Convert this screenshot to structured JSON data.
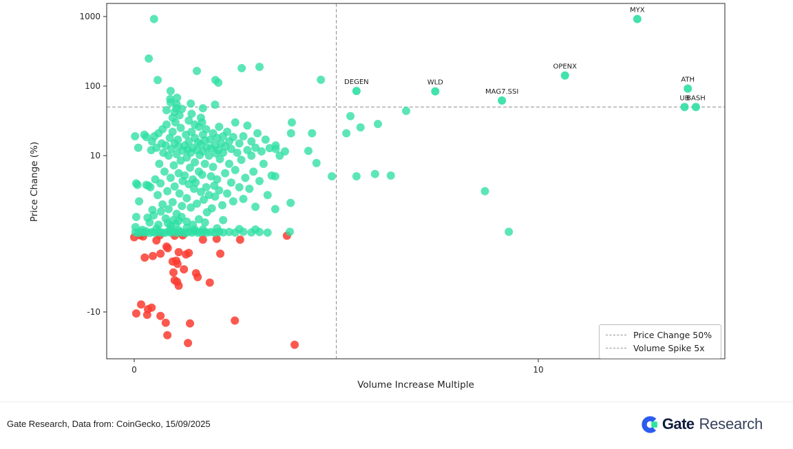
{
  "chart_data": {
    "type": "scatter",
    "title": "",
    "xlabel": "Volume Increase Multiple",
    "ylabel": "Price Change (%)",
    "x_scale": "linear",
    "y_scale": "symlog",
    "y_linthresh": 10,
    "xlim": [
      -0.68,
      14.6
    ],
    "ylim": [
      -45,
      2000
    ],
    "x_ticks": [
      0,
      10
    ],
    "y_ticks": [
      1000,
      100,
      10,
      -10
    ],
    "grid": false,
    "legend_position": "lower right",
    "reference_lines": {
      "price_change_pct": 50,
      "volume_spike_x": 5
    },
    "legend": [
      {
        "label": "Price Change 50%"
      },
      {
        "label": "Volume Spike 5x"
      }
    ],
    "colors": {
      "positive": "#2EDFA3",
      "negative": "#FA3C30",
      "dash_line": "#8f8f8f",
      "spine": "#4a4a4a",
      "annotation": "#1a1a1a"
    },
    "labeled_points": [
      {
        "label": "DEGEN",
        "x": 5.5,
        "y": 85
      },
      {
        "label": "WLD",
        "x": 7.45,
        "y": 84
      },
      {
        "label": "MAG7.SSI",
        "x": 9.1,
        "y": 62
      },
      {
        "label": "OPENX",
        "x": 10.66,
        "y": 142
      },
      {
        "label": "MYX",
        "x": 12.45,
        "y": 920
      },
      {
        "label": "ATH",
        "x": 13.7,
        "y": 92
      },
      {
        "label": "UB",
        "x": 13.62,
        "y": 50
      },
      {
        "label": "BASH",
        "x": 13.9,
        "y": 50
      }
    ],
    "points_positive": [
      [
        0.02,
        19
      ],
      [
        0.05,
        6.5
      ],
      [
        0.08,
        6.3
      ],
      [
        0.05,
        2.2
      ],
      [
        0.1,
        13
      ],
      [
        0.12,
        4.2
      ],
      [
        0.03,
        0.9
      ],
      [
        0.25,
        20
      ],
      [
        0.3,
        18.5
      ],
      [
        0.35,
        6.2
      ],
      [
        0.4,
        6.0
      ],
      [
        0.42,
        12
      ],
      [
        0.45,
        3.1
      ],
      [
        0.49,
        920
      ],
      [
        0.36,
        249
      ],
      [
        0.5,
        19
      ],
      [
        0.52,
        7
      ],
      [
        0.55,
        13
      ],
      [
        0.58,
        122
      ],
      [
        0.58,
        5
      ],
      [
        0.6,
        21
      ],
      [
        0.62,
        9
      ],
      [
        0.65,
        6.5
      ],
      [
        0.68,
        15
      ],
      [
        0.7,
        3.8
      ],
      [
        0.72,
        11
      ],
      [
        0.3,
        6.3
      ],
      [
        0.33,
        2.1
      ],
      [
        0.38,
        1.5
      ],
      [
        0.48,
        2.4
      ],
      [
        0.6,
        1.2
      ],
      [
        0.66,
        2.9
      ],
      [
        0.7,
        24
      ],
      [
        0.44,
        16
      ],
      [
        0.75,
        8
      ],
      [
        0.78,
        14
      ],
      [
        0.8,
        28
      ],
      [
        0.82,
        5.5
      ],
      [
        0.85,
        10
      ],
      [
        0.85,
        3.2
      ],
      [
        0.88,
        18
      ],
      [
        0.89,
        65
      ],
      [
        0.9,
        7.2
      ],
      [
        0.9,
        85
      ],
      [
        0.92,
        12.5
      ],
      [
        0.95,
        22
      ],
      [
        0.95,
        4.1
      ],
      [
        0.98,
        8.8
      ],
      [
        1.0,
        15
      ],
      [
        1.0,
        6.1
      ],
      [
        1.02,
        30
      ],
      [
        1.04,
        48
      ],
      [
        1.05,
        10.5
      ],
      [
        1.05,
        2.6
      ],
      [
        1.06,
        68
      ],
      [
        1.08,
        17
      ],
      [
        1.1,
        7.8
      ],
      [
        1.1,
        13.5
      ],
      [
        1.12,
        5.2
      ],
      [
        1.15,
        25
      ],
      [
        1.15,
        9.4
      ],
      [
        1.18,
        3.6
      ],
      [
        1.2,
        11.8
      ],
      [
        1.2,
        6.8
      ],
      [
        0.78,
        2.0
      ],
      [
        0.83,
        1.4
      ],
      [
        0.9,
        1.1
      ],
      [
        0.97,
        1.8
      ],
      [
        1.03,
        1.3
      ],
      [
        1.1,
        1.7
      ],
      [
        1.17,
        2.2
      ],
      [
        0.8,
        45
      ],
      [
        0.9,
        58
      ],
      [
        1.0,
        42
      ],
      [
        1.12,
        38
      ],
      [
        1.05,
        55
      ],
      [
        0.95,
        35
      ],
      [
        1.18,
        47
      ],
      [
        1.25,
        14
      ],
      [
        1.25,
        7.5
      ],
      [
        1.28,
        20
      ],
      [
        1.3,
        9.8
      ],
      [
        1.3,
        4.6
      ],
      [
        1.32,
        12.2
      ],
      [
        1.35,
        6.4
      ],
      [
        1.35,
        16
      ],
      [
        1.38,
        8.5
      ],
      [
        1.4,
        11
      ],
      [
        1.4,
        3.4
      ],
      [
        1.4,
        56
      ],
      [
        1.42,
        22
      ],
      [
        1.45,
        7
      ],
      [
        1.45,
        13
      ],
      [
        1.48,
        5.8
      ],
      [
        1.5,
        9.2
      ],
      [
        1.5,
        18
      ],
      [
        1.52,
        6.6
      ],
      [
        1.55,
        12
      ],
      [
        1.55,
        3.9
      ],
      [
        1.55,
        165
      ],
      [
        1.58,
        15.5
      ],
      [
        1.6,
        8
      ],
      [
        1.6,
        26
      ],
      [
        1.62,
        10.2
      ],
      [
        1.65,
        5.4
      ],
      [
        1.65,
        14.5
      ],
      [
        1.68,
        7.6
      ],
      [
        1.7,
        11.5
      ],
      [
        1.7,
        20
      ],
      [
        1.7,
        48
      ],
      [
        1.72,
        4.4
      ],
      [
        1.75,
        9
      ],
      [
        1.75,
        16.5
      ],
      [
        1.78,
        6
      ],
      [
        1.8,
        13
      ],
      [
        1.8,
        2.8
      ],
      [
        1.3,
        1.6
      ],
      [
        1.45,
        1.2
      ],
      [
        1.6,
        1.9
      ],
      [
        1.75,
        1.5
      ],
      [
        1.35,
        32
      ],
      [
        1.5,
        28
      ],
      [
        1.65,
        35
      ],
      [
        1.78,
        24
      ],
      [
        1.42,
        40
      ],
      [
        1.68,
        30
      ],
      [
        1.85,
        10
      ],
      [
        1.85,
        5
      ],
      [
        1.88,
        17
      ],
      [
        1.9,
        7.4
      ],
      [
        1.9,
        12.8
      ],
      [
        1.92,
        3.3
      ],
      [
        1.95,
        21
      ],
      [
        1.95,
        8.6
      ],
      [
        1.98,
        6.2
      ],
      [
        2.0,
        14
      ],
      [
        2.0,
        4.8
      ],
      [
        2.0,
        54
      ],
      [
        2.01,
        122
      ],
      [
        2.02,
        10.8
      ],
      [
        2.05,
        18
      ],
      [
        2.05,
        7
      ],
      [
        2.08,
        12
      ],
      [
        2.08,
        112
      ],
      [
        2.1,
        5.6
      ],
      [
        2.1,
        26
      ],
      [
        2.12,
        9.6
      ],
      [
        2.15,
        15
      ],
      [
        2.18,
        3.7
      ],
      [
        2.2,
        11
      ],
      [
        2.2,
        19
      ],
      [
        2.25,
        7.8
      ],
      [
        2.25,
        13.5
      ],
      [
        2.3,
        5.2
      ],
      [
        2.3,
        22
      ],
      [
        2.35,
        9
      ],
      [
        2.35,
        16
      ],
      [
        2.4,
        6.6
      ],
      [
        2.4,
        12.5
      ],
      [
        2.45,
        4.2
      ],
      [
        2.45,
        18.5
      ],
      [
        2.5,
        8.2
      ],
      [
        2.5,
        30
      ],
      [
        2.2,
        1.8
      ],
      [
        2.55,
        11
      ],
      [
        2.6,
        6
      ],
      [
        2.6,
        15
      ],
      [
        2.65,
        9.5
      ],
      [
        2.66,
        181
      ],
      [
        2.7,
        4.5
      ],
      [
        2.7,
        19
      ],
      [
        2.75,
        7.2
      ],
      [
        2.8,
        12
      ],
      [
        2.8,
        27
      ],
      [
        2.85,
        5.8
      ],
      [
        2.9,
        10
      ],
      [
        2.9,
        16
      ],
      [
        2.95,
        8
      ],
      [
        3.0,
        13
      ],
      [
        3.0,
        3.5
      ],
      [
        3.05,
        21
      ],
      [
        3.1,
        6.8
      ],
      [
        3.1,
        189
      ],
      [
        3.15,
        11.5
      ],
      [
        3.2,
        9
      ],
      [
        3.25,
        17
      ],
      [
        3.3,
        5
      ],
      [
        3.35,
        12.8
      ],
      [
        3.4,
        7.5
      ],
      [
        3.5,
        14
      ],
      [
        3.6,
        10
      ],
      [
        3.49,
        7.4
      ],
      [
        3.49,
        3.2
      ],
      [
        3.5,
        12.5
      ],
      [
        3.73,
        11.5
      ],
      [
        3.87,
        4.0
      ],
      [
        3.9,
        30
      ],
      [
        3.88,
        21
      ],
      [
        4.31,
        11.7
      ],
      [
        4.4,
        21
      ],
      [
        4.51,
        9.1
      ],
      [
        4.62,
        123
      ],
      [
        4.89,
        7.4
      ],
      [
        5.25,
        21
      ],
      [
        5.35,
        37
      ],
      [
        5.5,
        7.4
      ],
      [
        5.6,
        25.5
      ],
      [
        5.96,
        7.7
      ],
      [
        6.03,
        28.5
      ],
      [
        6.35,
        7.5
      ],
      [
        6.73,
        44
      ],
      [
        8.68,
        5.5
      ],
      [
        9.27,
        0.3
      ],
      [
        0.03,
        0.25
      ],
      [
        0.1,
        0.15
      ],
      [
        0.17,
        0.3
      ],
      [
        0.24,
        0.2
      ],
      [
        0.3,
        0.35
      ],
      [
        0.38,
        0.15
      ],
      [
        0.45,
        0.28
      ],
      [
        0.52,
        0.18
      ],
      [
        0.6,
        0.32
      ],
      [
        0.68,
        0.22
      ],
      [
        0.75,
        0.15
      ],
      [
        0.83,
        0.3
      ],
      [
        0.9,
        0.2
      ],
      [
        0.97,
        0.35
      ],
      [
        1.05,
        0.18
      ],
      [
        1.12,
        0.28
      ],
      [
        1.2,
        0.22
      ],
      [
        1.28,
        0.15
      ],
      [
        1.35,
        0.3
      ],
      [
        1.43,
        0.2
      ],
      [
        1.5,
        0.35
      ],
      [
        1.58,
        0.18
      ],
      [
        1.65,
        0.25
      ],
      [
        1.73,
        0.3
      ],
      [
        1.8,
        0.2
      ],
      [
        1.9,
        0.28
      ],
      [
        2.0,
        0.18
      ],
      [
        2.1,
        0.3
      ],
      [
        2.2,
        0.22
      ],
      [
        2.35,
        0.28
      ],
      [
        2.5,
        0.2
      ],
      [
        2.7,
        0.3
      ],
      [
        2.9,
        0.22
      ],
      [
        3.1,
        0.28
      ],
      [
        3.3,
        0.2
      ],
      [
        3.85,
        0.3
      ],
      [
        0.2,
        0.55
      ],
      [
        0.55,
        0.7
      ],
      [
        0.9,
        0.6
      ],
      [
        1.1,
        0.5
      ],
      [
        1.3,
        0.8
      ],
      [
        1.5,
        0.6
      ],
      [
        1.7,
        0.6
      ],
      [
        2.05,
        0.75
      ],
      [
        2.6,
        0.65
      ],
      [
        3.0,
        0.6
      ]
    ],
    "points_negative": [
      [
        0.0,
        -0.4
      ],
      [
        0.15,
        -0.15
      ],
      [
        0.22,
        -0.3
      ],
      [
        0.55,
        -0.8
      ],
      [
        0.63,
        -0.15
      ],
      [
        0.8,
        -1.6
      ],
      [
        0.83,
        -1.8
      ],
      [
        1.0,
        -0.2
      ],
      [
        1.1,
        -2.3
      ],
      [
        1.2,
        -0.15
      ],
      [
        1.28,
        -2.6
      ],
      [
        0.26,
        -3.0
      ],
      [
        0.46,
        -2.8
      ],
      [
        0.65,
        -2.5
      ],
      [
        0.95,
        -3.5
      ],
      [
        1.04,
        -3.4
      ],
      [
        1.07,
        -3.8
      ],
      [
        1.23,
        -4.5
      ],
      [
        0.97,
        -4.9
      ],
      [
        1.0,
        -5.9
      ],
      [
        1.06,
        -6.1
      ],
      [
        1.1,
        -6.6
      ],
      [
        1.35,
        -2.4
      ],
      [
        1.53,
        -5.0
      ],
      [
        1.57,
        -5.5
      ],
      [
        1.7,
        -0.7
      ],
      [
        1.87,
        -6.2
      ],
      [
        2.04,
        -0.6
      ],
      [
        2.13,
        -2.5
      ],
      [
        2.62,
        -0.7
      ],
      [
        3.78,
        -0.2
      ],
      [
        0.05,
        -10.5
      ],
      [
        0.17,
        -9.0
      ],
      [
        0.34,
        -9.6
      ],
      [
        0.43,
        -9.4
      ],
      [
        0.32,
        -11.0
      ],
      [
        0.65,
        -11.4
      ],
      [
        0.78,
        -14.3
      ],
      [
        0.82,
        -21.6
      ],
      [
        1.38,
        -14.6
      ],
      [
        1.33,
        -28.0
      ],
      [
        2.49,
        -13.3
      ],
      [
        3.97,
        -29.6
      ]
    ]
  },
  "footer": {
    "source_text": "Gate Research, Data from: CoinGecko, 15/09/2025",
    "logo": {
      "brand": "Gate",
      "suffix": "Research"
    }
  }
}
